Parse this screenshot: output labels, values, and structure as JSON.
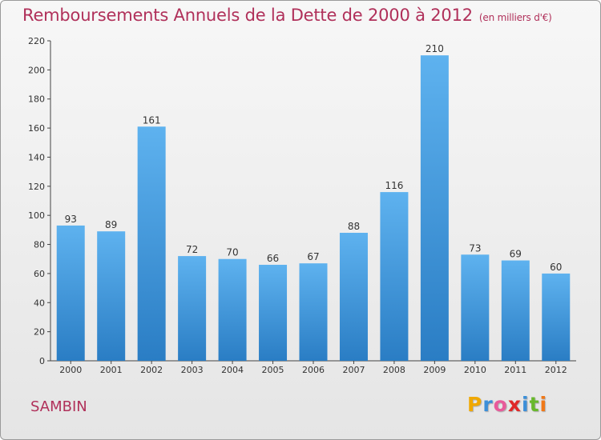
{
  "title": "Remboursements Annuels de la Dette de 2000 à 2012",
  "unit_note": "(en milliers d'€)",
  "commune": "SAMBIN",
  "logo": {
    "letters": [
      "P",
      "r",
      "o",
      "x",
      "i",
      "t",
      "i"
    ],
    "colors": [
      "#f0a800",
      "#3c8fd8",
      "#e85a9a",
      "#e02828",
      "#3c8fd8",
      "#68b82c",
      "#f07818"
    ]
  },
  "colors": {
    "bar_top": "#5eb2ef",
    "bar_bottom": "#2a7dc4",
    "title": "#b0305a"
  },
  "chart_data": {
    "type": "bar",
    "categories": [
      "2000",
      "2001",
      "2002",
      "2003",
      "2004",
      "2005",
      "2006",
      "2007",
      "2008",
      "2009",
      "2010",
      "2011",
      "2012"
    ],
    "values": [
      93,
      89,
      161,
      72,
      70,
      66,
      67,
      88,
      116,
      210,
      73,
      69,
      60
    ],
    "ylim": [
      0,
      220
    ],
    "yticks": [
      0,
      20,
      40,
      60,
      80,
      100,
      120,
      140,
      160,
      180,
      200,
      220
    ],
    "grid": false
  }
}
